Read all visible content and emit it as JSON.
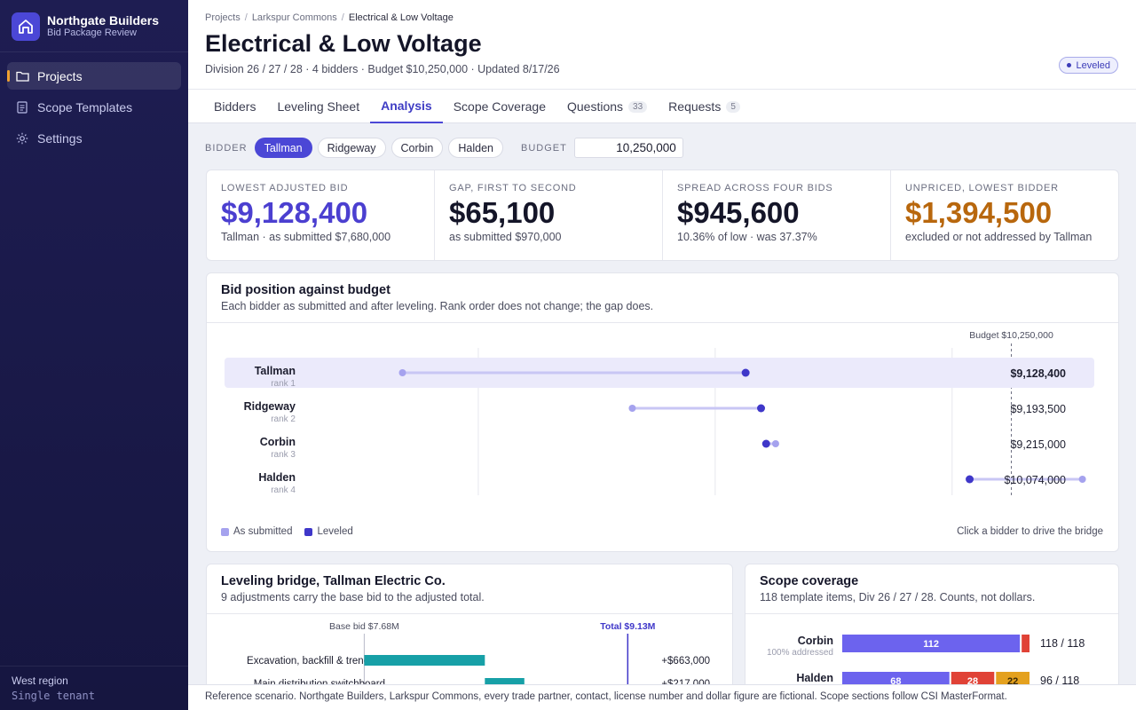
{
  "app": {
    "name": "Northgate Builders",
    "subtitle": "Bid Package Review"
  },
  "sidebar": {
    "items": [
      {
        "label": "Projects",
        "icon": "folder-icon",
        "active": true
      },
      {
        "label": "Scope Templates",
        "icon": "document-icon",
        "active": false
      },
      {
        "label": "Settings",
        "icon": "gear-icon",
        "active": false
      }
    ],
    "region": "West region",
    "tenant": "Single tenant"
  },
  "breadcrumb": [
    "Projects",
    "Larkspur Commons",
    "Electrical & Low Voltage"
  ],
  "page": {
    "title": "Electrical & Low Voltage",
    "subtitle": "Division 26 / 27 / 28 · 4 bidders · Budget $10,250,000 · Updated 8/17/26",
    "status": "Leveled"
  },
  "tabs": [
    {
      "label": "Bidders",
      "count": "",
      "active": false
    },
    {
      "label": "Leveling Sheet",
      "count": "",
      "active": false
    },
    {
      "label": "Analysis",
      "count": "",
      "active": true
    },
    {
      "label": "Scope Coverage",
      "count": "",
      "active": false
    },
    {
      "label": "Questions",
      "count": "33",
      "active": false
    },
    {
      "label": "Requests",
      "count": "5",
      "active": false
    }
  ],
  "filters": {
    "bidder_label": "BIDDER",
    "bidders": [
      "Tallman",
      "Ridgeway",
      "Corbin",
      "Halden"
    ],
    "selected_bidder": "Tallman",
    "budget_label": "BUDGET",
    "budget_value": "10,250,000"
  },
  "kpis": [
    {
      "label": "Lowest adjusted bid",
      "value": "$9,128,400",
      "note": "Tallman · as submitted $7,680,000",
      "tone": "purple"
    },
    {
      "label": "Gap, first to second",
      "value": "$65,100",
      "note": "as submitted $970,000",
      "tone": "default"
    },
    {
      "label": "Spread across four bids",
      "value": "$945,600",
      "note": "10.36% of low · was 37.37%",
      "tone": "default"
    },
    {
      "label": "Unpriced, lowest bidder",
      "value": "$1,394,500",
      "note": "excluded or not addressed by Tallman",
      "tone": "amber"
    }
  ],
  "position_card": {
    "title": "Bid position against budget",
    "subtitle": "Each bidder as submitted and after leveling. Rank order does not change; the gap does.",
    "legend_submitted": "As submitted",
    "legend_leveled": "Leveled",
    "hint": "Click a bidder to drive the bridge"
  },
  "bridge_card": {
    "title": "Leveling bridge, Tallman Electric Co.",
    "subtitle": "9 adjustments carry the base bid to the adjusted total.",
    "base_label": "Base bid $7.68M",
    "total_label": "Total $9.13M"
  },
  "coverage_card": {
    "title": "Scope coverage",
    "subtitle": "118 template items, Div 26 / 27 / 28. Counts, not dollars."
  },
  "chart_data": [
    {
      "type": "scatter",
      "title": "Bid position against budget",
      "xlim": [
        7000000,
        10750000
      ],
      "xticks": [
        {
          "value": 8000000,
          "label": "$8M"
        },
        {
          "value": 9000000,
          "label": "$9M"
        },
        {
          "value": 10000000,
          "label": "$10M"
        }
      ],
      "budget": {
        "value": 10250000,
        "label": "Budget $10,250,000"
      },
      "rows": [
        {
          "name": "Tallman",
          "rank": "rank 1",
          "submitted": 7680000,
          "leveled": 9128400,
          "label": "$9,128,400",
          "highlight": true
        },
        {
          "name": "Ridgeway",
          "rank": "rank 2",
          "submitted": 8650000,
          "leveled": 9193500,
          "label": "$9,193,500",
          "highlight": false
        },
        {
          "name": "Corbin",
          "rank": "rank 3",
          "submitted": 9255000,
          "leveled": 9215000,
          "label": "$9,215,000",
          "highlight": false
        },
        {
          "name": "Halden",
          "rank": "rank 4",
          "submitted": 10550000,
          "leveled": 10074000,
          "label": "$10,074,000",
          "highlight": false
        }
      ],
      "colors": {
        "submitted": "#a5a2ee",
        "leveled": "#3f37c9"
      }
    },
    {
      "type": "bar",
      "title": "Leveling bridge, Tallman Electric Co.",
      "base": 7680000,
      "total": 9128400,
      "xlim": [
        7000000,
        9400000
      ],
      "steps": [
        {
          "label": "Excavation, backfill & trenchi...",
          "value": 663000,
          "value_label": "+$663,000"
        },
        {
          "label": "Main distribution switchboard",
          "value": 217000,
          "value_label": "+$217,000"
        }
      ],
      "color": "#17a0a7"
    },
    {
      "type": "bar",
      "title": "Scope coverage",
      "total": 118,
      "rows": [
        {
          "name": "Corbin",
          "note": "100% addressed",
          "segments": [
            112,
            6
          ],
          "segment_labels": [
            "112",
            ""
          ],
          "ratio": "118 / 118"
        },
        {
          "name": "Halden",
          "note": "",
          "segments": [
            68,
            28,
            22
          ],
          "segment_labels": [
            "68",
            "28",
            "22"
          ],
          "ratio": "96 / 118"
        }
      ],
      "colors": [
        "#6c63ee",
        "#e04236",
        "#e4a11e"
      ]
    }
  ],
  "footer": "Reference scenario. Northgate Builders, Larkspur Commons, every trade partner, contact, license number and dollar figure are fictional. Scope sections follow CSI MasterFormat."
}
